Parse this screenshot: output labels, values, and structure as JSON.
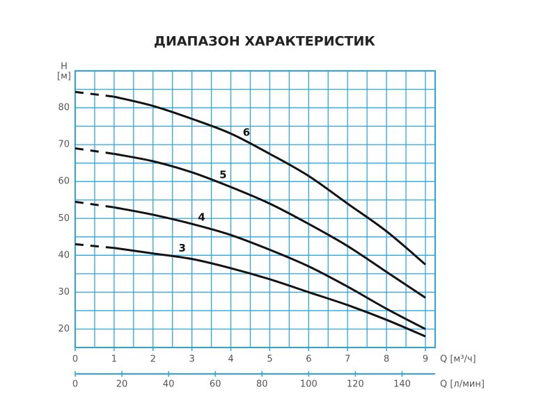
{
  "chart_data": {
    "type": "line",
    "title": "ДИАПАЗОН ХАРАКТЕРИСТИК",
    "y_label": "H",
    "y_unit": "[м]",
    "x_label": "Q [м³/ч]",
    "x2_label": "Q [л/мин]",
    "x": [
      0,
      1,
      2,
      3,
      4,
      5,
      6,
      7,
      8,
      9
    ],
    "dashed_before": 1,
    "series": [
      {
        "name": "6",
        "color": "#111111",
        "values": [
          84.3,
          83,
          80.5,
          77,
          73,
          67.5,
          61.5,
          54,
          46.5,
          37.5
        ]
      },
      {
        "name": "5",
        "color": "#111111",
        "values": [
          69,
          67.5,
          65.5,
          62.5,
          58.5,
          54,
          48.5,
          42.5,
          35.5,
          28.5
        ]
      },
      {
        "name": "4",
        "color": "#111111",
        "values": [
          54.5,
          53,
          51,
          48.5,
          45.5,
          41.5,
          37,
          31.5,
          25.5,
          20
        ]
      },
      {
        "name": "3",
        "color": "#111111",
        "values": [
          43,
          42,
          40.5,
          39,
          36.5,
          33.5,
          30,
          26.5,
          22.5,
          18
        ]
      }
    ],
    "xlim": [
      0,
      9.25
    ],
    "xticks": [
      0,
      1,
      2,
      3,
      4,
      5,
      6,
      7,
      8,
      9
    ],
    "x2lim": [
      0,
      154.1667
    ],
    "x2ticks": [
      0,
      20,
      40,
      60,
      80,
      100,
      120,
      140
    ],
    "ylim": [
      15,
      90
    ],
    "yticks": [
      20,
      30,
      40,
      50,
      60,
      70,
      80
    ],
    "xgrid": [
      0.5,
      1,
      1.5,
      2,
      2.5,
      3,
      3.5,
      4,
      4.5,
      5,
      5.5,
      6,
      6.5,
      7,
      7.5,
      8,
      8.5,
      9
    ],
    "ygrid": [
      20,
      25,
      30,
      35,
      40,
      45,
      50,
      55,
      60,
      65,
      70,
      75,
      80,
      85
    ],
    "grid_color": "#2ba6dc"
  }
}
